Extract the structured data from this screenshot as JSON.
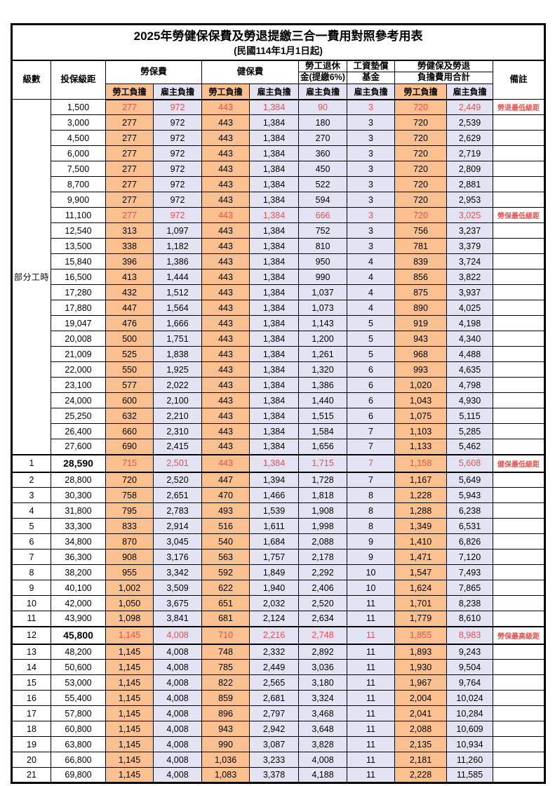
{
  "title": "2025年勞健保保費及勞退提繳三合一費用對照參考用表",
  "subtitle": "(民國114年1月1日起)",
  "header": {
    "level": "級數",
    "bracket": "投保級距",
    "labor_insurance": "勞保費",
    "health_insurance": "健保費",
    "pension_line1": "勞工退休",
    "pension_line2": "金(提繳6%)",
    "wage_fund_line1": "工資墊償",
    "wage_fund_line2": "基金",
    "total_line1": "勞健保及勞退",
    "total_line2": "負擔費用合計",
    "remark": "備註",
    "employee_share": "勞工負擔",
    "employer_share": "雇主負擔"
  },
  "part_time": {
    "label": "部分工時",
    "rowspan": 23
  },
  "colors": {
    "employee_col_bg": "#fac090",
    "employer_col_bg": "#e4e3f3",
    "highlight_text": "#e8514d",
    "grid": "#000000"
  },
  "rows": [
    {
      "salary": "1,500",
      "values": [
        "277",
        "972",
        "443",
        "1,384",
        "90",
        "3",
        "720",
        "2,449"
      ],
      "remark": "勞退最低級距",
      "red": true
    },
    {
      "salary": "3,000",
      "values": [
        "277",
        "972",
        "443",
        "1,384",
        "180",
        "3",
        "720",
        "2,539"
      ],
      "remark": ""
    },
    {
      "salary": "4,500",
      "values": [
        "277",
        "972",
        "443",
        "1,384",
        "270",
        "3",
        "720",
        "2,629"
      ],
      "remark": ""
    },
    {
      "salary": "6,000",
      "values": [
        "277",
        "972",
        "443",
        "1,384",
        "360",
        "3",
        "720",
        "2,719"
      ],
      "remark": ""
    },
    {
      "salary": "7,500",
      "values": [
        "277",
        "972",
        "443",
        "1,384",
        "450",
        "3",
        "720",
        "2,809"
      ],
      "remark": ""
    },
    {
      "salary": "8,700",
      "values": [
        "277",
        "972",
        "443",
        "1,384",
        "522",
        "3",
        "720",
        "2,881"
      ],
      "remark": ""
    },
    {
      "salary": "9,900",
      "values": [
        "277",
        "972",
        "443",
        "1,384",
        "594",
        "3",
        "720",
        "2,953"
      ],
      "remark": ""
    },
    {
      "salary": "11,100",
      "values": [
        "277",
        "972",
        "443",
        "1,384",
        "666",
        "3",
        "720",
        "3,025"
      ],
      "remark": "勞保最低級距",
      "red": true
    },
    {
      "salary": "12,540",
      "values": [
        "313",
        "1,097",
        "443",
        "1,384",
        "752",
        "3",
        "756",
        "3,237"
      ],
      "remark": ""
    },
    {
      "salary": "13,500",
      "values": [
        "338",
        "1,182",
        "443",
        "1,384",
        "810",
        "3",
        "781",
        "3,379"
      ],
      "remark": ""
    },
    {
      "salary": "15,840",
      "values": [
        "396",
        "1,386",
        "443",
        "1,384",
        "950",
        "4",
        "839",
        "3,724"
      ],
      "remark": ""
    },
    {
      "salary": "16,500",
      "values": [
        "413",
        "1,444",
        "443",
        "1,384",
        "990",
        "4",
        "856",
        "3,822"
      ],
      "remark": ""
    },
    {
      "salary": "17,280",
      "values": [
        "432",
        "1,512",
        "443",
        "1,384",
        "1,037",
        "4",
        "875",
        "3,937"
      ],
      "remark": ""
    },
    {
      "salary": "17,880",
      "values": [
        "447",
        "1,564",
        "443",
        "1,384",
        "1,073",
        "4",
        "890",
        "4,025"
      ],
      "remark": ""
    },
    {
      "salary": "19,047",
      "values": [
        "476",
        "1,666",
        "443",
        "1,384",
        "1,143",
        "5",
        "919",
        "4,198"
      ],
      "remark": ""
    },
    {
      "salary": "20,008",
      "values": [
        "500",
        "1,751",
        "443",
        "1,384",
        "1,200",
        "5",
        "943",
        "4,340"
      ],
      "remark": ""
    },
    {
      "salary": "21,009",
      "values": [
        "525",
        "1,838",
        "443",
        "1,384",
        "1,261",
        "5",
        "968",
        "4,488"
      ],
      "remark": ""
    },
    {
      "salary": "22,000",
      "values": [
        "550",
        "1,925",
        "443",
        "1,384",
        "1,320",
        "6",
        "993",
        "4,635"
      ],
      "remark": ""
    },
    {
      "salary": "23,100",
      "values": [
        "577",
        "2,022",
        "443",
        "1,384",
        "1,386",
        "6",
        "1,020",
        "4,798"
      ],
      "remark": ""
    },
    {
      "salary": "24,000",
      "values": [
        "600",
        "2,100",
        "443",
        "1,384",
        "1,440",
        "6",
        "1,043",
        "4,930"
      ],
      "remark": ""
    },
    {
      "salary": "25,250",
      "values": [
        "632",
        "2,210",
        "443",
        "1,384",
        "1,515",
        "6",
        "1,075",
        "5,115"
      ],
      "remark": ""
    },
    {
      "salary": "26,400",
      "values": [
        "660",
        "2,310",
        "443",
        "1,384",
        "1,584",
        "7",
        "1,103",
        "5,285"
      ],
      "remark": ""
    },
    {
      "salary": "27,600",
      "values": [
        "690",
        "2,415",
        "443",
        "1,384",
        "1,656",
        "7",
        "1,133",
        "5,462"
      ],
      "remark": ""
    },
    {
      "level": "1",
      "salary": "28,590",
      "values": [
        "715",
        "2,501",
        "443",
        "1,384",
        "1,715",
        "7",
        "1,158",
        "5,608"
      ],
      "remark": "健保最低級距",
      "red": true,
      "section": true
    },
    {
      "level": "2",
      "salary": "28,800",
      "values": [
        "720",
        "2,520",
        "447",
        "1,394",
        "1,728",
        "7",
        "1,167",
        "5,649"
      ],
      "remark": ""
    },
    {
      "level": "3",
      "salary": "30,300",
      "values": [
        "758",
        "2,651",
        "470",
        "1,466",
        "1,818",
        "8",
        "1,228",
        "5,943"
      ],
      "remark": ""
    },
    {
      "level": "4",
      "salary": "31,800",
      "values": [
        "795",
        "2,783",
        "493",
        "1,539",
        "1,908",
        "8",
        "1,288",
        "6,238"
      ],
      "remark": ""
    },
    {
      "level": "5",
      "salary": "33,300",
      "values": [
        "833",
        "2,914",
        "516",
        "1,611",
        "1,998",
        "8",
        "1,349",
        "6,531"
      ],
      "remark": ""
    },
    {
      "level": "6",
      "salary": "34,800",
      "values": [
        "870",
        "3,045",
        "540",
        "1,684",
        "2,088",
        "9",
        "1,410",
        "6,826"
      ],
      "remark": ""
    },
    {
      "level": "7",
      "salary": "36,300",
      "values": [
        "908",
        "3,176",
        "563",
        "1,757",
        "2,178",
        "9",
        "1,471",
        "7,120"
      ],
      "remark": ""
    },
    {
      "level": "8",
      "salary": "38,200",
      "values": [
        "955",
        "3,342",
        "592",
        "1,849",
        "2,292",
        "10",
        "1,547",
        "7,493"
      ],
      "remark": ""
    },
    {
      "level": "9",
      "salary": "40,100",
      "values": [
        "1,002",
        "3,509",
        "622",
        "1,940",
        "2,406",
        "10",
        "1,624",
        "7,865"
      ],
      "remark": ""
    },
    {
      "level": "10",
      "salary": "42,000",
      "values": [
        "1,050",
        "3,675",
        "651",
        "2,032",
        "2,520",
        "11",
        "1,701",
        "8,238"
      ],
      "remark": ""
    },
    {
      "level": "11",
      "salary": "43,900",
      "values": [
        "1,098",
        "3,841",
        "681",
        "2,124",
        "2,634",
        "11",
        "1,779",
        "8,610"
      ],
      "remark": ""
    },
    {
      "level": "12",
      "salary": "45,800",
      "values": [
        "1,145",
        "4,008",
        "710",
        "2,216",
        "2,748",
        "11",
        "1,855",
        "8,983"
      ],
      "remark": "勞保最高級距",
      "red": true,
      "section": true
    },
    {
      "level": "13",
      "salary": "48,200",
      "values": [
        "1,145",
        "4,008",
        "748",
        "2,332",
        "2,892",
        "11",
        "1,893",
        "9,243"
      ],
      "remark": ""
    },
    {
      "level": "14",
      "salary": "50,600",
      "values": [
        "1,145",
        "4,008",
        "785",
        "2,449",
        "3,036",
        "11",
        "1,930",
        "9,504"
      ],
      "remark": ""
    },
    {
      "level": "15",
      "salary": "53,000",
      "values": [
        "1,145",
        "4,008",
        "822",
        "2,565",
        "3,180",
        "11",
        "1,967",
        "9,764"
      ],
      "remark": ""
    },
    {
      "level": "16",
      "salary": "55,400",
      "values": [
        "1,145",
        "4,008",
        "859",
        "2,681",
        "3,324",
        "11",
        "2,004",
        "10,024"
      ],
      "remark": ""
    },
    {
      "level": "17",
      "salary": "57,800",
      "values": [
        "1,145",
        "4,008",
        "896",
        "2,797",
        "3,468",
        "11",
        "2,041",
        "10,284"
      ],
      "remark": ""
    },
    {
      "level": "18",
      "salary": "60,800",
      "values": [
        "1,145",
        "4,008",
        "943",
        "2,942",
        "3,648",
        "11",
        "2,088",
        "10,609"
      ],
      "remark": ""
    },
    {
      "level": "19",
      "salary": "63,800",
      "values": [
        "1,145",
        "4,008",
        "990",
        "3,087",
        "3,828",
        "11",
        "2,135",
        "10,934"
      ],
      "remark": ""
    },
    {
      "level": "20",
      "salary": "66,800",
      "values": [
        "1,145",
        "4,008",
        "1,036",
        "3,233",
        "4,008",
        "11",
        "2,181",
        "11,260"
      ],
      "remark": ""
    },
    {
      "level": "21",
      "salary": "69,800",
      "values": [
        "1,145",
        "4,008",
        "1,083",
        "3,378",
        "4,188",
        "11",
        "2,228",
        "11,585"
      ],
      "remark": ""
    }
  ]
}
